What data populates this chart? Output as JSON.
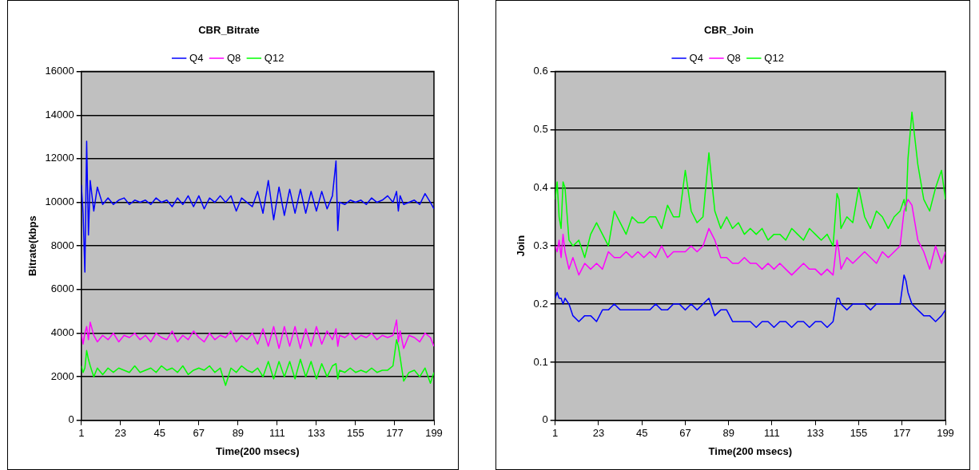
{
  "chart_data": [
    {
      "type": "line",
      "title": "CBR_Bitrate",
      "xlabel": "Time(200 msecs)",
      "ylabel": "Bitrate(kbps",
      "legend": "top",
      "grid": "y",
      "xlim": [
        1,
        199
      ],
      "xticks": [
        1,
        23,
        45,
        67,
        89,
        111,
        133,
        155,
        177,
        199
      ],
      "ylim": [
        0,
        16000
      ],
      "yticks": [
        0,
        2000,
        4000,
        6000,
        8000,
        10000,
        12000,
        14000,
        16000
      ],
      "x": [
        1,
        2,
        3,
        4,
        5,
        6,
        8,
        10,
        13,
        16,
        19,
        22,
        25,
        28,
        31,
        34,
        37,
        40,
        43,
        46,
        49,
        52,
        55,
        58,
        61,
        64,
        67,
        70,
        73,
        76,
        79,
        82,
        85,
        88,
        91,
        94,
        97,
        100,
        103,
        106,
        109,
        112,
        115,
        118,
        121,
        124,
        127,
        130,
        133,
        136,
        139,
        142,
        144,
        145,
        146,
        149,
        152,
        155,
        158,
        161,
        164,
        167,
        170,
        173,
        176,
        178,
        179,
        180,
        182,
        185,
        188,
        191,
        194,
        197,
        199
      ],
      "series": [
        {
          "name": "Q4",
          "color": "#0000ff",
          "values": [
            10800,
            9500,
            6800,
            12800,
            8500,
            11000,
            9600,
            10700,
            9900,
            10200,
            9900,
            10100,
            10200,
            9900,
            10100,
            10000,
            10100,
            9900,
            10200,
            10000,
            10100,
            9800,
            10200,
            9900,
            10300,
            9800,
            10300,
            9700,
            10200,
            10000,
            10300,
            10000,
            10300,
            9600,
            10200,
            10000,
            9800,
            10500,
            9500,
            11000,
            9200,
            10700,
            9400,
            10600,
            9500,
            10600,
            9500,
            10500,
            9600,
            10500,
            9700,
            10300,
            11900,
            8700,
            10000,
            9900,
            10100,
            10000,
            10100,
            9900,
            10200,
            10000,
            10100,
            10300,
            10000,
            10500,
            9600,
            10300,
            9900,
            10000,
            10100,
            9900,
            10400,
            10000,
            9700
          ]
        },
        {
          "name": "Q8",
          "color": "#ff00ff",
          "values": [
            4000,
            3500,
            4000,
            4300,
            3700,
            4500,
            3900,
            3600,
            3900,
            3700,
            4000,
            3600,
            3900,
            3800,
            4000,
            3700,
            3900,
            3600,
            4000,
            3800,
            3700,
            4100,
            3600,
            3900,
            3700,
            4100,
            3800,
            3600,
            4000,
            3700,
            3900,
            3800,
            4100,
            3600,
            3900,
            3700,
            4000,
            3500,
            4200,
            3400,
            4300,
            3300,
            4300,
            3400,
            4300,
            3300,
            4200,
            3400,
            4300,
            3500,
            4100,
            3700,
            4200,
            3400,
            3900,
            3800,
            4000,
            3700,
            3900,
            3800,
            4000,
            3700,
            3900,
            3800,
            3900,
            4600,
            3600,
            4100,
            3300,
            3900,
            3800,
            3600,
            4000,
            3800,
            3400
          ]
        },
        {
          "name": "Q12",
          "color": "#00ff00",
          "values": [
            2500,
            2200,
            2400,
            3200,
            2800,
            2500,
            2000,
            2400,
            2100,
            2400,
            2200,
            2400,
            2300,
            2200,
            2500,
            2200,
            2300,
            2400,
            2200,
            2500,
            2300,
            2400,
            2200,
            2500,
            2100,
            2300,
            2400,
            2300,
            2500,
            2200,
            2400,
            1600,
            2400,
            2200,
            2500,
            2300,
            2200,
            2400,
            2000,
            2700,
            1900,
            2700,
            2000,
            2700,
            1900,
            2800,
            2000,
            2700,
            1900,
            2600,
            2000,
            2500,
            2600,
            1900,
            2300,
            2200,
            2400,
            2200,
            2300,
            2200,
            2400,
            2200,
            2300,
            2300,
            2500,
            3700,
            3400,
            2900,
            1800,
            2200,
            2300,
            2000,
            2400,
            1700,
            2200
          ]
        }
      ]
    },
    {
      "type": "line",
      "title": "CBR_Join",
      "xlabel": "Time(200 msecs)",
      "ylabel": "Join",
      "legend": "top",
      "grid": "y",
      "xlim": [
        1,
        199
      ],
      "xticks": [
        1,
        23,
        45,
        67,
        89,
        111,
        133,
        155,
        177,
        199
      ],
      "ylim": [
        0,
        0.6
      ],
      "yticks": [
        0,
        0.1,
        0.2,
        0.3,
        0.4,
        0.5,
        0.6
      ],
      "x": [
        1,
        2,
        3,
        4,
        5,
        6,
        8,
        10,
        13,
        16,
        19,
        22,
        25,
        28,
        31,
        34,
        37,
        40,
        43,
        46,
        49,
        52,
        55,
        58,
        61,
        64,
        67,
        70,
        73,
        76,
        79,
        82,
        85,
        88,
        91,
        94,
        97,
        100,
        103,
        106,
        109,
        112,
        115,
        118,
        121,
        124,
        127,
        130,
        133,
        136,
        139,
        142,
        144,
        145,
        146,
        149,
        152,
        155,
        158,
        161,
        164,
        167,
        170,
        173,
        176,
        178,
        179,
        180,
        182,
        185,
        188,
        191,
        194,
        197,
        199
      ],
      "series": [
        {
          "name": "Q4",
          "color": "#0000ff",
          "values": [
            0.21,
            0.22,
            0.21,
            0.21,
            0.2,
            0.21,
            0.2,
            0.18,
            0.17,
            0.18,
            0.18,
            0.17,
            0.19,
            0.19,
            0.2,
            0.19,
            0.19,
            0.19,
            0.19,
            0.19,
            0.19,
            0.2,
            0.19,
            0.19,
            0.2,
            0.2,
            0.19,
            0.2,
            0.19,
            0.2,
            0.21,
            0.18,
            0.19,
            0.19,
            0.17,
            0.17,
            0.17,
            0.17,
            0.16,
            0.17,
            0.17,
            0.16,
            0.17,
            0.17,
            0.16,
            0.17,
            0.17,
            0.16,
            0.17,
            0.17,
            0.16,
            0.17,
            0.21,
            0.21,
            0.2,
            0.19,
            0.2,
            0.2,
            0.2,
            0.19,
            0.2,
            0.2,
            0.2,
            0.2,
            0.2,
            0.25,
            0.24,
            0.22,
            0.2,
            0.19,
            0.18,
            0.18,
            0.17,
            0.18,
            0.19
          ]
        },
        {
          "name": "Q8",
          "color": "#ff00ff",
          "values": [
            0.3,
            0.29,
            0.31,
            0.28,
            0.32,
            0.29,
            0.26,
            0.28,
            0.25,
            0.27,
            0.26,
            0.27,
            0.26,
            0.29,
            0.28,
            0.28,
            0.29,
            0.28,
            0.29,
            0.28,
            0.29,
            0.28,
            0.3,
            0.28,
            0.29,
            0.29,
            0.29,
            0.3,
            0.29,
            0.3,
            0.33,
            0.31,
            0.28,
            0.28,
            0.27,
            0.27,
            0.28,
            0.27,
            0.27,
            0.26,
            0.27,
            0.26,
            0.27,
            0.26,
            0.25,
            0.26,
            0.27,
            0.26,
            0.26,
            0.25,
            0.26,
            0.25,
            0.31,
            0.29,
            0.26,
            0.28,
            0.27,
            0.28,
            0.29,
            0.28,
            0.27,
            0.29,
            0.28,
            0.29,
            0.3,
            0.36,
            0.37,
            0.38,
            0.37,
            0.31,
            0.29,
            0.26,
            0.3,
            0.27,
            0.29
          ]
        },
        {
          "name": "Q12",
          "color": "#00ff00",
          "values": [
            0.38,
            0.41,
            0.35,
            0.33,
            0.41,
            0.4,
            0.31,
            0.3,
            0.31,
            0.28,
            0.32,
            0.34,
            0.32,
            0.3,
            0.36,
            0.34,
            0.32,
            0.35,
            0.34,
            0.34,
            0.35,
            0.35,
            0.33,
            0.37,
            0.35,
            0.35,
            0.43,
            0.36,
            0.34,
            0.35,
            0.46,
            0.36,
            0.33,
            0.35,
            0.33,
            0.34,
            0.32,
            0.33,
            0.32,
            0.33,
            0.31,
            0.32,
            0.32,
            0.31,
            0.33,
            0.32,
            0.31,
            0.33,
            0.32,
            0.31,
            0.32,
            0.3,
            0.39,
            0.38,
            0.33,
            0.35,
            0.34,
            0.4,
            0.35,
            0.33,
            0.36,
            0.35,
            0.33,
            0.35,
            0.36,
            0.38,
            0.36,
            0.45,
            0.53,
            0.44,
            0.38,
            0.36,
            0.4,
            0.43,
            0.38
          ]
        }
      ]
    }
  ]
}
